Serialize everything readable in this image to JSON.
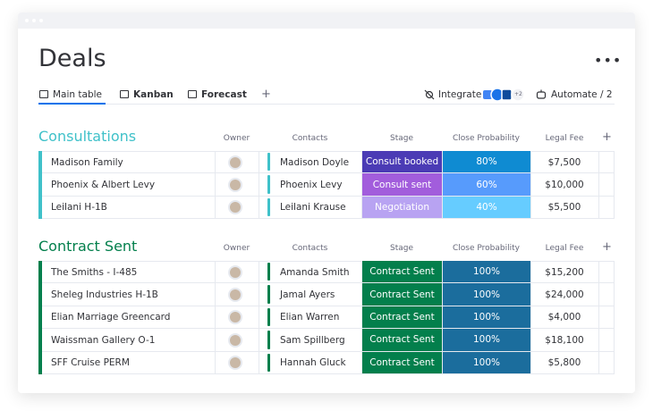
{
  "header": {
    "title": "Deals"
  },
  "tabs": [
    "Main table",
    "Kanban",
    "Forecast"
  ],
  "toolbar": {
    "integrate": "Integrate",
    "integrations_more": "+2",
    "automate": "Automate / 2"
  },
  "groups": [
    {
      "name": "Consultations",
      "color": "#3fc1c9",
      "columns": [
        "Owner",
        "Contacts",
        "Stage",
        "Close Probability",
        "Legal Fee"
      ],
      "rows": [
        {
          "name": "Madison Family",
          "contact": "Madison Doyle",
          "stage": "Consult booked",
          "stage_color": "#4b3bb5",
          "probability": "80%",
          "probability_color": "#0f8bd2",
          "fee": "$7,500"
        },
        {
          "name": "Phoenix & Albert Levy",
          "contact": "Phoenix Levy",
          "stage": "Consult sent",
          "stage_color": "#a25ddc",
          "probability": "60%",
          "probability_color": "#579bfc",
          "fee": "$10,000"
        },
        {
          "name": "Leilani H-1B",
          "contact": "Leilani Krause",
          "stage": "Negotiation",
          "stage_color": "#b8a3f2",
          "probability": "40%",
          "probability_color": "#66ccff",
          "fee": "$5,500"
        }
      ]
    },
    {
      "name": "Contract Sent",
      "color": "#037f4c",
      "columns": [
        "Owner",
        "Contacts",
        "Stage",
        "Close Probability",
        "Legal Fee"
      ],
      "rows": [
        {
          "name": "The Smiths - I-485",
          "contact": "Amanda Smith",
          "stage": "Contract Sent",
          "stage_color": "#037f4c",
          "probability": "100%",
          "probability_color": "#1b6d9d",
          "fee": "$15,200"
        },
        {
          "name": "Sheleg Industries H-1B",
          "contact": "Jamal Ayers",
          "stage": "Contract Sent",
          "stage_color": "#037f4c",
          "probability": "100%",
          "probability_color": "#1b6d9d",
          "fee": "$24,000"
        },
        {
          "name": "Elian Marriage Greencard",
          "contact": "Elian Warren",
          "stage": "Contract Sent",
          "stage_color": "#037f4c",
          "probability": "100%",
          "probability_color": "#1b6d9d",
          "fee": "$4,000"
        },
        {
          "name": "Waissman Gallery O-1",
          "contact": "Sam Spillberg",
          "stage": "Contract Sent",
          "stage_color": "#037f4c",
          "probability": "100%",
          "probability_color": "#1b6d9d",
          "fee": "$18,100"
        },
        {
          "name": "SFF Cruise PERM",
          "contact": "Hannah Gluck",
          "stage": "Contract Sent",
          "stage_color": "#037f4c",
          "probability": "100%",
          "probability_color": "#1b6d9d",
          "fee": "$5,800"
        }
      ]
    }
  ]
}
